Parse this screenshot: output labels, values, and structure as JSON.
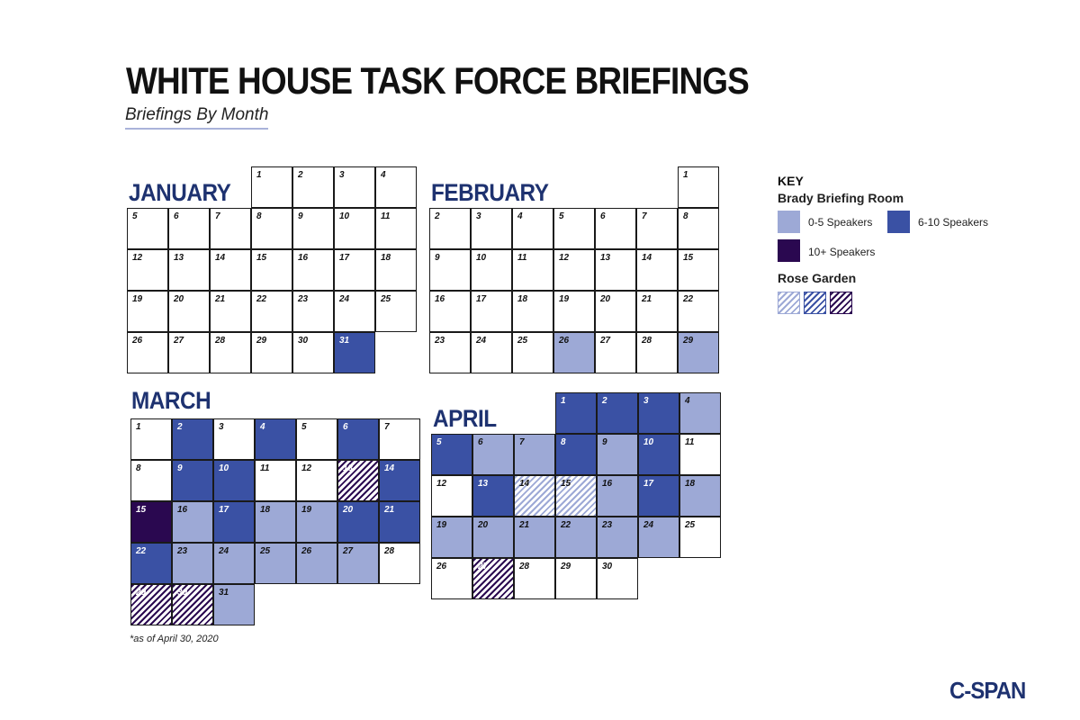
{
  "header": {
    "title": "WHITE HOUSE TASK FORCE BRIEFINGS",
    "subtitle": "Briefings By Month"
  },
  "chart_data": {
    "type": "table",
    "months": [
      {
        "name": "JANUARY",
        "year": 2020,
        "days_in_month": 31,
        "first_weekday": 3,
        "briefings": {
          "31": "medium"
        }
      },
      {
        "name": "FEBRUARY",
        "year": 2020,
        "days_in_month": 29,
        "first_weekday": 6,
        "briefings": {
          "26": "light",
          "29": "light"
        }
      },
      {
        "name": "MARCH",
        "year": 2020,
        "days_in_month": 31,
        "first_weekday": 0,
        "briefings": {
          "2": "medium",
          "4": "medium",
          "6": "medium",
          "9": "medium",
          "10": "medium",
          "13": "rg-dark",
          "14": "medium",
          "15": "dark",
          "16": "light",
          "17": "medium",
          "18": "light",
          "19": "light",
          "20": "medium",
          "21": "medium",
          "22": "medium",
          "23": "light",
          "24": "light",
          "25": "light",
          "26": "light",
          "27": "light",
          "29": "rg-dark",
          "30": "rg-dark",
          "31": "light"
        }
      },
      {
        "name": "APRIL",
        "year": 2020,
        "days_in_month": 30,
        "first_weekday": 3,
        "briefings": {
          "1": "medium",
          "2": "medium",
          "3": "medium",
          "4": "light",
          "5": "medium",
          "6": "light",
          "7": "light",
          "8": "medium",
          "9": "light",
          "10": "medium",
          "13": "medium",
          "14": "rg-light",
          "15": "rg-light",
          "16": "light",
          "17": "medium",
          "18": "light",
          "19": "light",
          "20": "light",
          "21": "light",
          "22": "light",
          "23": "light",
          "24": "light",
          "27": "rg-dark"
        }
      }
    ],
    "key": {
      "title": "KEY",
      "brady_heading": "Brady Briefing Room",
      "brady_items": [
        {
          "level": "light",
          "label": "0-5 Speakers",
          "color": "#9da9d6"
        },
        {
          "level": "medium",
          "label": "6-10 Speakers",
          "color": "#3a51a4"
        },
        {
          "level": "dark",
          "label": "10+ Speakers",
          "color": "#2a0850"
        }
      ],
      "rose_heading": "Rose Garden",
      "rose_items": [
        {
          "level": "rg-light",
          "color": "#9da9d6"
        },
        {
          "level": "rg-medium",
          "color": "#3a51a4"
        },
        {
          "level": "rg-dark",
          "color": "#2a0850"
        }
      ]
    }
  },
  "footnote": "*as of April 30, 2020",
  "logo": {
    "text": "C-SPAN",
    "color": "#1e3270"
  }
}
